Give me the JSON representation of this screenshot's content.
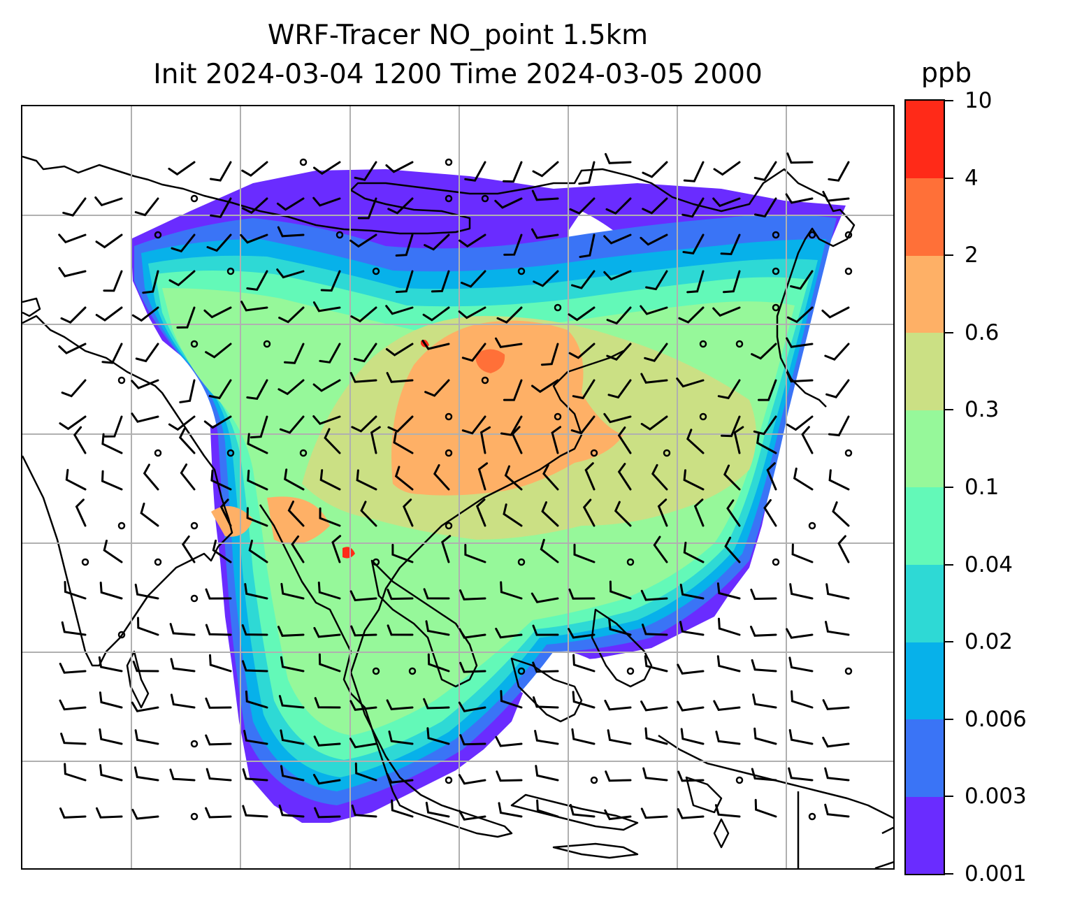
{
  "title": {
    "line1": "WRF-Tracer NO_point 1.5km",
    "line2": "Init 2024-03-04 1200 Time 2024-03-05 2000"
  },
  "colorbar": {
    "unit": "ppb",
    "levels": [
      "0.001",
      "0.003",
      "0.006",
      "0.02",
      "0.04",
      "0.1",
      "0.3",
      "0.6",
      "2",
      "4",
      "10"
    ],
    "colors": [
      "#6a2cff",
      "#3a74f6",
      "#07b1ea",
      "#2ed9d5",
      "#63f9b8",
      "#96f89a",
      "#cbe084",
      "#feb066",
      "#ff7038",
      "#ff2a18"
    ]
  }
}
